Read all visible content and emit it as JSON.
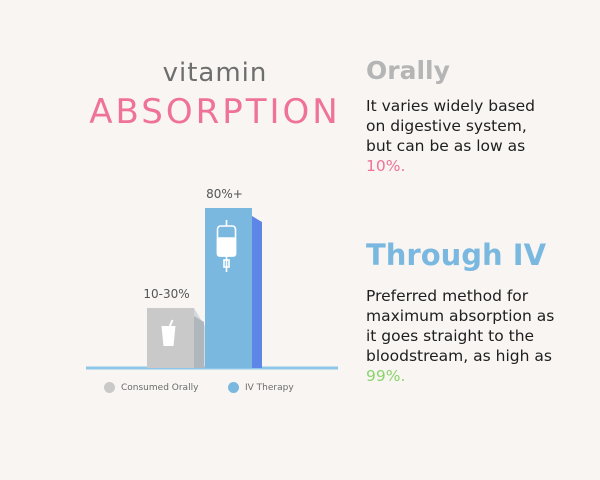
{
  "title": {
    "line1": "vitamin",
    "line2": "ABSORPTION"
  },
  "chart_data": {
    "type": "bar",
    "categories": [
      "Consumed Orally",
      "IV Therapy"
    ],
    "values": [
      30,
      80
    ],
    "data_labels": [
      "10-30%",
      "80%+"
    ],
    "colors": [
      "#c9c9c9",
      "#7ab8e0"
    ],
    "ylim": [
      0,
      100
    ],
    "legend": "bottom",
    "grid": false
  },
  "icons": {
    "orally": "cup-icon",
    "iv": "iv-bag-icon"
  },
  "panels": [
    {
      "heading": "Orally",
      "heading_color": "#b5b5b5",
      "text_before": "It varies widely based on digestive system, but can be as low as ",
      "highlight": "10%.",
      "highlight_color": "#ef7398",
      "text_after": ""
    },
    {
      "heading": "Through IV",
      "heading_color": "#7ab8e0",
      "text_before": "Preferred method for maximum absorption as it goes straight to the bloodstream, as high as ",
      "highlight": "99%.",
      "highlight_color": "#8bd46c",
      "text_after": ""
    }
  ]
}
